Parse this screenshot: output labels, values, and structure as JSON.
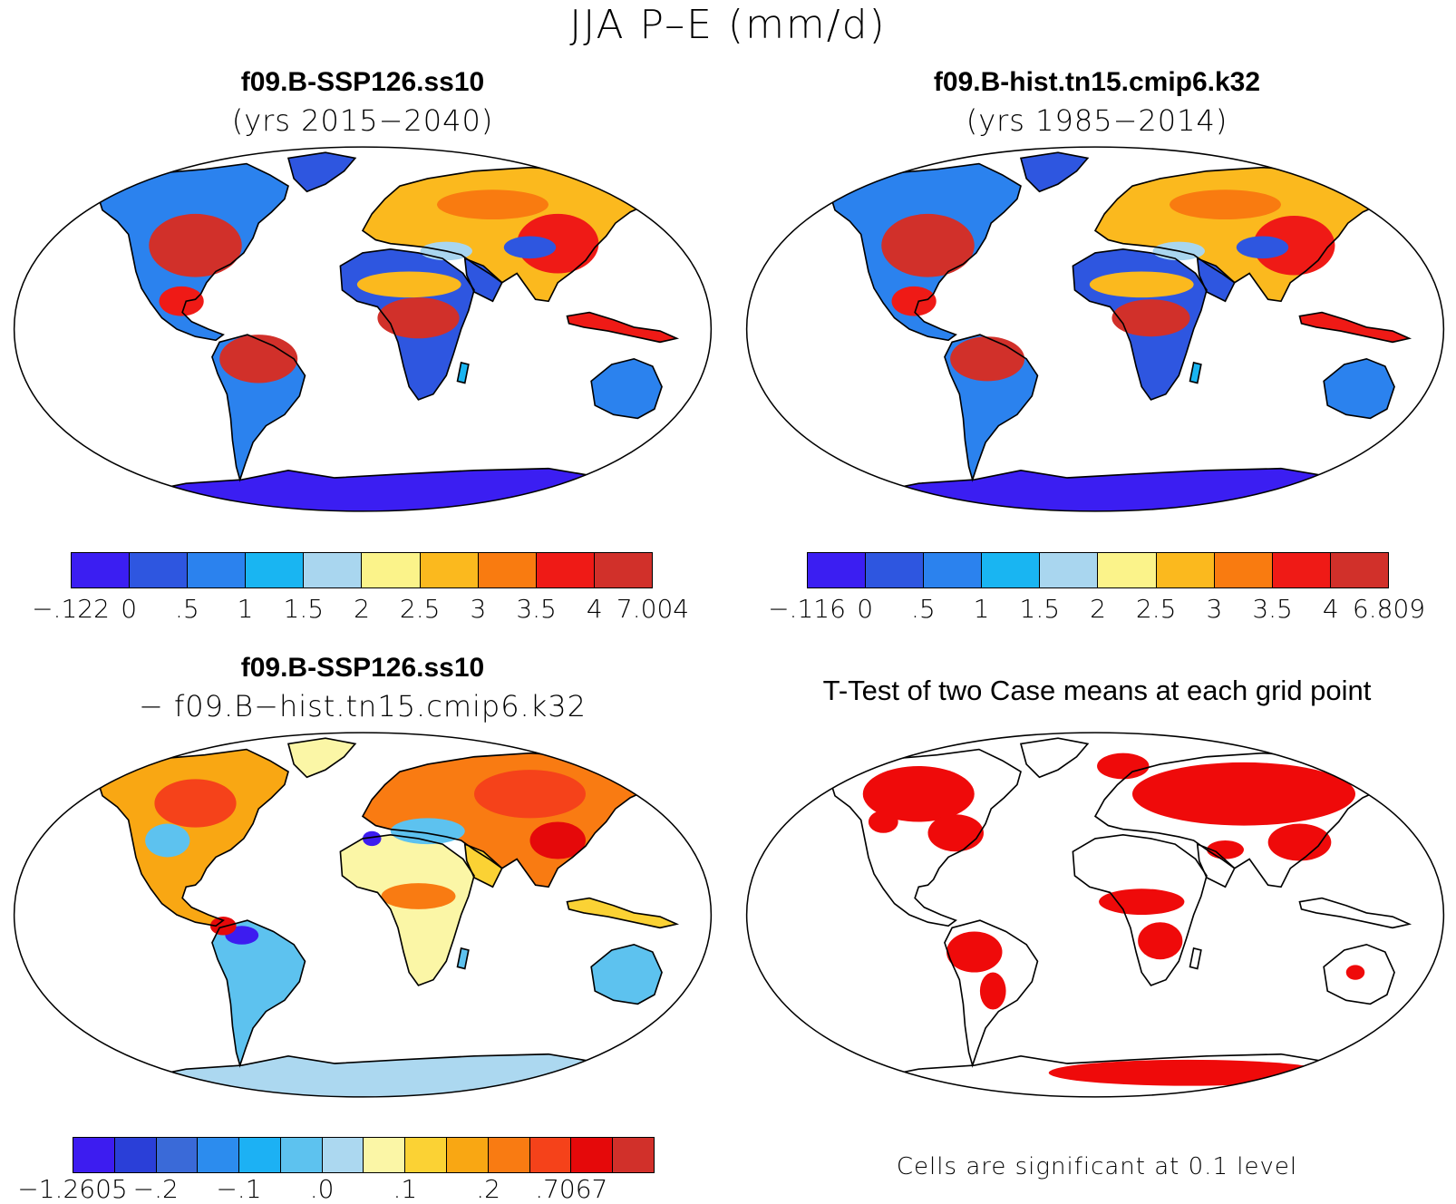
{
  "figure": {
    "title": "JJA P–E (mm/d)"
  },
  "panels": {
    "case1": {
      "name": "f09.B-SSP126.ss10",
      "subtitle": "(yrs 2015−2040)",
      "colorbar": {
        "colors": [
          "#3b1ef2",
          "#2e56e0",
          "#2b82ee",
          "#19b5f2",
          "#a9d6ef",
          "#fbf38a",
          "#fbb91e",
          "#f97b10",
          "#ef1a16",
          "#d1302a"
        ],
        "labels": [
          "−.122",
          "0",
          ".5",
          "1",
          "1.5",
          "2",
          "2.5",
          "3",
          "3.5",
          "4",
          "7.004"
        ]
      }
    },
    "case2": {
      "name": "f09.B-hist.tn15.cmip6.k32",
      "subtitle": "(yrs 1985−2014)",
      "colorbar": {
        "colors": [
          "#3b1ef2",
          "#2e56e0",
          "#2b82ee",
          "#19b5f2",
          "#a9d6ef",
          "#fbf38a",
          "#fbb91e",
          "#f97b10",
          "#ef1a16",
          "#d1302a"
        ],
        "labels": [
          "−.116",
          "0",
          ".5",
          "1",
          "1.5",
          "2",
          "2.5",
          "3",
          "3.5",
          "4",
          "6.809"
        ]
      }
    },
    "difference": {
      "name": "f09.B-SSP126.ss10",
      "subtitle": "− f09.B−hist.tn15.cmip6.k32",
      "colorbar": {
        "colors": [
          "#3d1cf0",
          "#2a3fd8",
          "#3a6ad8",
          "#2c8cee",
          "#1cb1f4",
          "#5dc2ef",
          "#acd8f0",
          "#fbf6a6",
          "#fbd234",
          "#f9a713",
          "#f97b12",
          "#f5421a",
          "#e5090a",
          "#d1302a"
        ],
        "labels": [
          "−1.2605",
          "−.2",
          "−.1",
          ".0",
          ".1",
          ".2",
          ".7067"
        ]
      }
    },
    "ttest": {
      "name": "T-Test of two Case means at each grid point",
      "note": "Cells are significant at 0.1 level",
      "significant_color": "#ef0a0a"
    }
  }
}
